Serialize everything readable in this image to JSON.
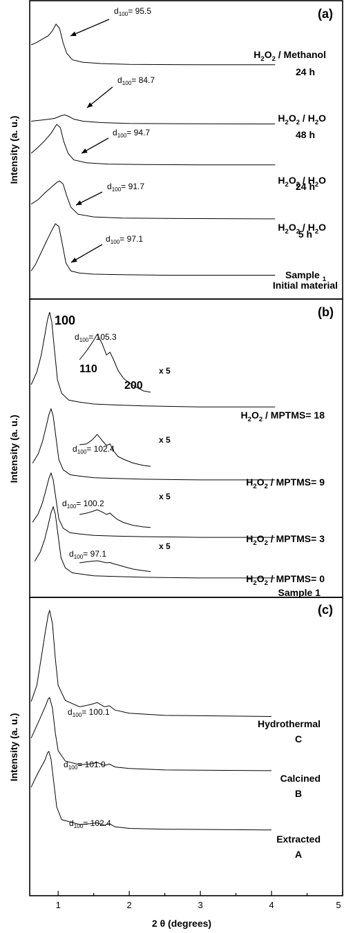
{
  "chart_data": [
    {
      "type": "line",
      "panel_label": "(a)",
      "ylabel": "Intensity (a. u.)",
      "xlim": [
        0.6,
        5
      ],
      "series": [
        {
          "label_main": "H2O2 / Methanol",
          "label_sub": "24 h",
          "d100": "d100= 95.5",
          "peak_x": 0.97,
          "peak_height": 0.78,
          "x_end": 4.05,
          "x": [
            0.62,
            0.7,
            0.78,
            0.86,
            0.92,
            0.97,
            1.02,
            1.07,
            1.12,
            1.2,
            1.35,
            1.6,
            2.0,
            3.0,
            4.05
          ],
          "y": [
            0.5,
            0.56,
            0.64,
            0.72,
            0.84,
            1.0,
            0.9,
            0.55,
            0.3,
            0.14,
            0.08,
            0.05,
            0.03,
            0.02,
            0.02
          ]
        },
        {
          "label_main": "H2O2 / H2O",
          "label_sub": "48 h",
          "d100": "d100= 84.7",
          "peak_x": 1.09,
          "peak_height": 0.22,
          "x_end": 4.05,
          "x": [
            0.62,
            0.8,
            0.95,
            1.03,
            1.09,
            1.15,
            1.22,
            1.35,
            1.6,
            2.0,
            3.0,
            4.05
          ],
          "y": [
            0.18,
            0.26,
            0.34,
            0.48,
            0.55,
            0.46,
            0.3,
            0.18,
            0.1,
            0.05,
            0.03,
            0.02
          ]
        },
        {
          "label_main": "H2O2 / H2O",
          "label_sub": "24 h",
          "d100": "d100= 94.7",
          "peak_x": 0.98,
          "peak_height": 0.62,
          "x_end": 4.05,
          "x": [
            0.62,
            0.72,
            0.82,
            0.9,
            0.98,
            1.03,
            1.08,
            1.14,
            1.22,
            1.4,
            1.7,
            2.2,
            3.0,
            4.05
          ],
          "y": [
            0.3,
            0.45,
            0.62,
            0.78,
            1.0,
            0.92,
            0.58,
            0.3,
            0.14,
            0.07,
            0.04,
            0.03,
            0.02,
            0.02
          ]
        },
        {
          "label_main": "H2O2 / H2O",
          "label_sub": "5 h",
          "d100": "d100= 91.7",
          "peak_x": 1.02,
          "peak_height": 0.63,
          "x_end": 4.05,
          "x": [
            0.62,
            0.72,
            0.82,
            0.92,
            0.98,
            1.02,
            1.07,
            1.12,
            1.18,
            1.28,
            1.5,
            1.9,
            2.5,
            4.05
          ],
          "y": [
            0.4,
            0.52,
            0.7,
            0.86,
            0.96,
            1.0,
            0.92,
            0.62,
            0.32,
            0.14,
            0.07,
            0.04,
            0.03,
            0.02
          ]
        },
        {
          "label_main": "Sample 1",
          "label_sub": "Initial material",
          "d100": "d100= 97.1",
          "peak_x": 0.96,
          "peak_height": 0.95,
          "x_end": 4.05,
          "x": [
            0.62,
            0.68,
            0.75,
            0.82,
            0.89,
            0.96,
            1.01,
            1.06,
            1.11,
            1.18,
            1.3,
            1.5,
            1.9,
            2.5,
            4.05
          ],
          "y": [
            0.1,
            0.22,
            0.42,
            0.62,
            0.82,
            1.0,
            0.95,
            0.6,
            0.25,
            0.1,
            0.06,
            0.04,
            0.03,
            0.02,
            0.02
          ]
        }
      ]
    },
    {
      "type": "line",
      "panel_label": "(b)",
      "ylabel": "Intensity (a. u.)",
      "xlim": [
        0.6,
        5
      ],
      "reflections": [
        "100",
        "110",
        "200"
      ],
      "magnification": "x 5",
      "series": [
        {
          "label_main": "H2O2 / MPTMS= 18",
          "label_sub": "",
          "d100": "d100= 105.3",
          "peak_x": 0.88,
          "peak_height": 0.95,
          "x_end": 4.05
        },
        {
          "label_main": "H2O2 / MPTMS= 9",
          "label_sub": "",
          "d100": "d100= 102.4",
          "peak_x": 0.9,
          "peak_height": 0.73,
          "x_end": 4.05
        },
        {
          "label_main": "H2O2 / MPTMS= 3",
          "label_sub": "",
          "d100": "d100= 100.2",
          "peak_x": 0.9,
          "peak_height": 0.64,
          "x_end": 4.05
        },
        {
          "label_main": "H2O2 / MPTMS= 0",
          "label_sub": "Sample 1",
          "d100": "d100= 97.1",
          "peak_x": 0.93,
          "peak_height": 0.63,
          "x_end": 4.05
        }
      ],
      "zoom_traces": [
        {
          "x": [
            1.3,
            1.4,
            1.48,
            1.55,
            1.62,
            1.68,
            1.73,
            1.78,
            1.84,
            1.92,
            2.05,
            2.2,
            2.3
          ],
          "y": [
            0.55,
            0.68,
            0.8,
            0.92,
            0.78,
            0.62,
            0.66,
            0.55,
            0.4,
            0.28,
            0.18,
            0.1,
            0.08
          ]
        },
        {
          "x": [
            1.3,
            1.4,
            1.48,
            1.55,
            1.62,
            1.68,
            1.73,
            1.78,
            1.84,
            1.92,
            2.05,
            2.2,
            2.3
          ],
          "y": [
            0.6,
            0.62,
            0.72,
            0.85,
            0.7,
            0.58,
            0.62,
            0.45,
            0.32,
            0.25,
            0.16,
            0.1,
            0.08
          ]
        },
        {
          "x": [
            1.3,
            1.4,
            1.48,
            1.55,
            1.62,
            1.68,
            1.73,
            1.78,
            1.84,
            1.92,
            2.05,
            2.2,
            2.3
          ],
          "y": [
            0.55,
            0.6,
            0.66,
            0.72,
            0.64,
            0.55,
            0.6,
            0.48,
            0.36,
            0.26,
            0.16,
            0.1,
            0.08
          ]
        },
        {
          "x": [
            1.3,
            1.4,
            1.48,
            1.55,
            1.62,
            1.68,
            1.73,
            1.78,
            1.84,
            1.92,
            2.05,
            2.2,
            2.3
          ],
          "y": [
            0.5,
            0.55,
            0.58,
            0.6,
            0.55,
            0.5,
            0.52,
            0.45,
            0.4,
            0.32,
            0.2,
            0.12,
            0.08
          ]
        }
      ]
    },
    {
      "type": "line",
      "panel_label": "(c)",
      "ylabel": "Intensity (a. u.)",
      "xlabel": "2 θ (degrees)",
      "xlim": [
        0.6,
        5
      ],
      "x_ticks": [
        "1",
        "2",
        "3",
        "4",
        "5"
      ],
      "series": [
        {
          "label_main": "Hydrothermal",
          "label_sub": "C",
          "d100": "d100= 100.1",
          "peak_x": 0.88,
          "peak_height": 0.95,
          "x_end": 4.0,
          "x": [
            0.62,
            0.7,
            0.76,
            0.82,
            0.86,
            0.88,
            0.92,
            0.96,
            1.0,
            1.1,
            1.3,
            1.45,
            1.55,
            1.65,
            1.72,
            1.8,
            2.0,
            2.5,
            4.0
          ],
          "y": [
            0.15,
            0.3,
            0.55,
            0.8,
            0.96,
            1.0,
            0.88,
            0.55,
            0.3,
            0.16,
            0.1,
            0.12,
            0.14,
            0.1,
            0.11,
            0.07,
            0.04,
            0.02,
            0.01
          ]
        },
        {
          "label_main": "Calcined",
          "label_sub": "B",
          "d100": "d100= 101.0",
          "peak_x": 0.88,
          "peak_height": 0.95,
          "x_end": 4.0,
          "x": [
            0.62,
            0.7,
            0.76,
            0.82,
            0.86,
            0.88,
            0.92,
            0.96,
            1.0,
            1.1,
            1.3,
            1.45,
            1.55,
            1.65,
            1.72,
            1.8,
            2.0,
            2.5,
            4.0
          ],
          "y": [
            0.45,
            0.62,
            0.75,
            0.88,
            0.98,
            1.0,
            0.86,
            0.52,
            0.28,
            0.14,
            0.09,
            0.1,
            0.12,
            0.08,
            0.1,
            0.06,
            0.04,
            0.02,
            0.01
          ]
        },
        {
          "label_main": "Extracted",
          "label_sub": "A",
          "d100": "d100= 102.4",
          "peak_x": 0.87,
          "peak_height": 0.95,
          "x_end": 4.0,
          "x": [
            0.62,
            0.7,
            0.76,
            0.82,
            0.85,
            0.87,
            0.9,
            0.94,
            0.98,
            1.05,
            1.3,
            1.45,
            1.55,
            1.65,
            1.72,
            1.8,
            2.0,
            2.5,
            4.0
          ],
          "y": [
            0.55,
            0.7,
            0.8,
            0.9,
            0.98,
            1.0,
            0.9,
            0.6,
            0.3,
            0.14,
            0.08,
            0.09,
            0.1,
            0.07,
            0.09,
            0.05,
            0.03,
            0.02,
            0.01
          ]
        }
      ]
    }
  ]
}
